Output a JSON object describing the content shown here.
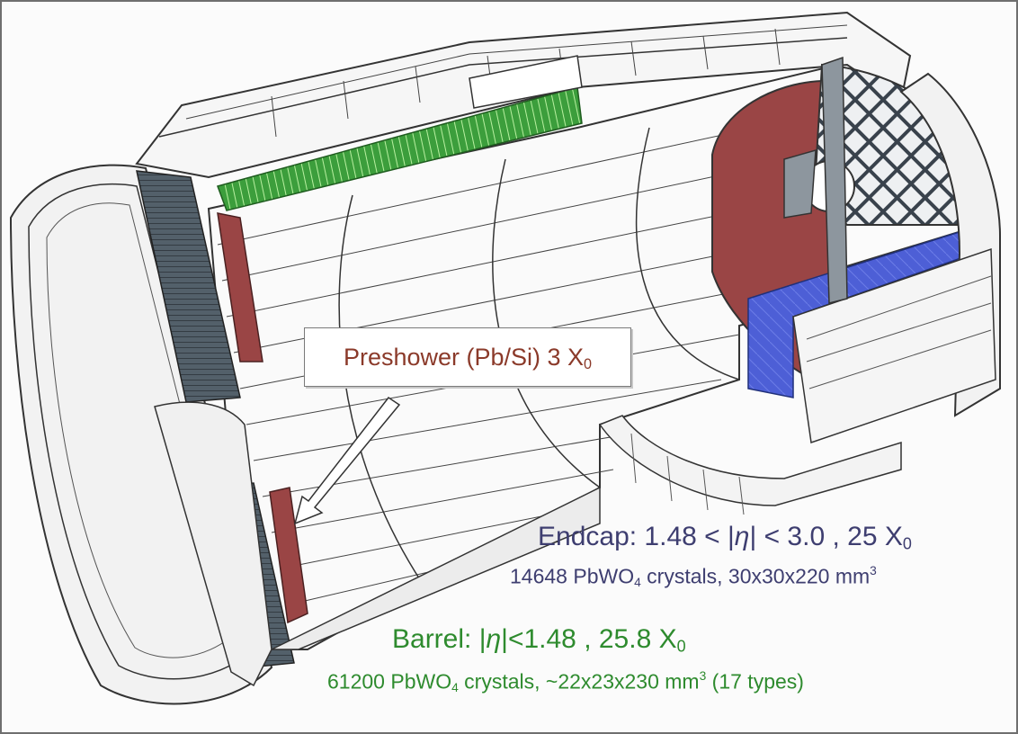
{
  "preshower": {
    "text": "Preshower (Pb/Si) 3 X",
    "sub": "0"
  },
  "endcap": {
    "title_a": "Endcap:  1.48 < |",
    "eta": "η",
    "title_b": "| < 3.0 , 25 X",
    "title_sub": "0",
    "detail_a": "14648 PbWO",
    "detail_sub": "4",
    "detail_b": " crystals, 30x30x220 mm",
    "detail_sup": "3"
  },
  "barrel": {
    "title_a": "Barrel: |",
    "eta": "η",
    "title_b": "|<1.48 , 25.8 X",
    "title_sub": "0",
    "detail_a": "61200 PbWO",
    "detail_sub": "4",
    "detail_b": " crystals, ~22x23x230 mm",
    "detail_sup": "3",
    "detail_c": " (17 types)"
  },
  "colors": {
    "endcap_text": "#3e3e70",
    "barrel_text": "#2e8b2e",
    "preshower_text": "#8b3a2a",
    "barrel_crystals": "#3fae3f",
    "endcap_crystals": "#4d5fd6",
    "preshower_fill": "#9a4545",
    "module_grey": "#55606a"
  }
}
